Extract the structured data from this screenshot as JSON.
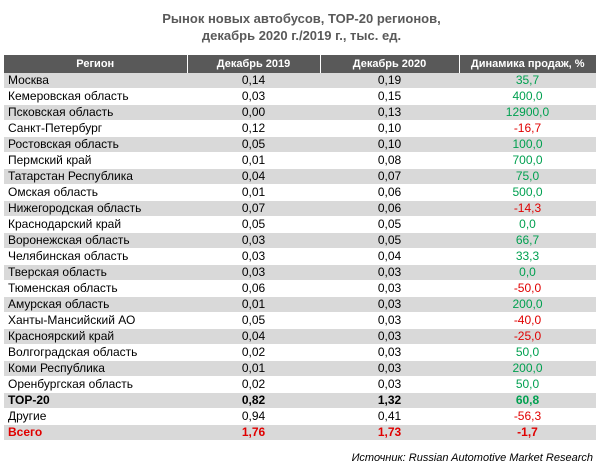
{
  "title_line1": "Рынок новых автобусов, ТОР-20 регионов,",
  "title_line2": "декабрь 2020 г./2019 г., тыс. ед.",
  "headers": [
    "Регион",
    "Декабрь 2019",
    "Декабрь 2020",
    "Динамика продаж, %"
  ],
  "rows": [
    {
      "region": "Москва",
      "dec2019": "0,14",
      "dec2020": "0,19",
      "change": "35,7",
      "sign": "pos",
      "shade": true
    },
    {
      "region": "Кемеровская область",
      "dec2019": "0,03",
      "dec2020": "0,15",
      "change": "400,0",
      "sign": "pos",
      "shade": false
    },
    {
      "region": "Псковская область",
      "dec2019": "0,00",
      "dec2020": "0,13",
      "change": "12900,0",
      "sign": "pos",
      "shade": true
    },
    {
      "region": "Санкт-Петербург",
      "dec2019": "0,12",
      "dec2020": "0,10",
      "change": "-16,7",
      "sign": "neg",
      "shade": false
    },
    {
      "region": "Ростовская область",
      "dec2019": "0,05",
      "dec2020": "0,10",
      "change": "100,0",
      "sign": "pos",
      "shade": true
    },
    {
      "region": "Пермский край",
      "dec2019": "0,01",
      "dec2020": "0,08",
      "change": "700,0",
      "sign": "pos",
      "shade": false
    },
    {
      "region": "Татарстан Республика",
      "dec2019": "0,04",
      "dec2020": "0,07",
      "change": "75,0",
      "sign": "pos",
      "shade": true
    },
    {
      "region": "Омская область",
      "dec2019": "0,01",
      "dec2020": "0,06",
      "change": "500,0",
      "sign": "pos",
      "shade": false
    },
    {
      "region": "Нижегородская область",
      "dec2019": "0,07",
      "dec2020": "0,06",
      "change": "-14,3",
      "sign": "neg",
      "shade": true
    },
    {
      "region": "Краснодарский край",
      "dec2019": "0,05",
      "dec2020": "0,05",
      "change": "0,0",
      "sign": "pos",
      "shade": false
    },
    {
      "region": "Воронежская область",
      "dec2019": "0,03",
      "dec2020": "0,05",
      "change": "66,7",
      "sign": "pos",
      "shade": true
    },
    {
      "region": "Челябинская область",
      "dec2019": "0,03",
      "dec2020": "0,04",
      "change": "33,3",
      "sign": "pos",
      "shade": false
    },
    {
      "region": "Тверская область",
      "dec2019": "0,03",
      "dec2020": "0,03",
      "change": "0,0",
      "sign": "pos",
      "shade": true
    },
    {
      "region": "Тюменская область",
      "dec2019": "0,06",
      "dec2020": "0,03",
      "change": "-50,0",
      "sign": "neg",
      "shade": false
    },
    {
      "region": "Амурская область",
      "dec2019": "0,01",
      "dec2020": "0,03",
      "change": "200,0",
      "sign": "pos",
      "shade": true
    },
    {
      "region": "Ханты-Мансийский АО",
      "dec2019": "0,05",
      "dec2020": "0,03",
      "change": "-40,0",
      "sign": "neg",
      "shade": false
    },
    {
      "region": "Красноярский край",
      "dec2019": "0,04",
      "dec2020": "0,03",
      "change": "-25,0",
      "sign": "neg",
      "shade": true
    },
    {
      "region": "Волгоградская область",
      "dec2019": "0,02",
      "dec2020": "0,03",
      "change": "50,0",
      "sign": "pos",
      "shade": false
    },
    {
      "region": "Коми Республика",
      "dec2019": "0,01",
      "dec2020": "0,03",
      "change": "200,0",
      "sign": "pos",
      "shade": true
    },
    {
      "region": "Оренбургская область",
      "dec2019": "0,02",
      "dec2020": "0,03",
      "change": "50,0",
      "sign": "pos",
      "shade": false
    },
    {
      "region": "ТОР-20",
      "dec2019": "0,82",
      "dec2020": "1,32",
      "change": "60,8",
      "sign": "pos",
      "shade": true,
      "style": "bold"
    },
    {
      "region": "Другие",
      "dec2019": "0,94",
      "dec2020": "0,41",
      "change": "-56,3",
      "sign": "neg",
      "shade": false
    },
    {
      "region": "Всего",
      "dec2019": "1,76",
      "dec2020": "1,73",
      "change": "-1,7",
      "sign": "neg",
      "shade": true,
      "style": "total"
    }
  ],
  "source": "Источник: Russian Automotive Market Research",
  "colors": {
    "header_bg": "#595959",
    "shade": "#d9d9d9",
    "positive": "#00a050",
    "negative": "#e00000"
  }
}
